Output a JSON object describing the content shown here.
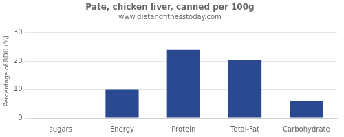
{
  "chart_data": {
    "type": "bar",
    "title": "Pate, chicken liver, canned per 100g",
    "subtitle": "www.dietandfitnesstoday.com",
    "categories": [
      "sugars",
      "Energy",
      "Protein",
      "Total-Fat",
      "Carbohydrate"
    ],
    "values": [
      0,
      10,
      24,
      20.3,
      6
    ],
    "color": "#2b4990",
    "ylabel": "Percentage of RDH (%)",
    "ylim": [
      0,
      33
    ],
    "yticks": [
      0,
      10,
      20,
      30
    ],
    "grid": true
  }
}
